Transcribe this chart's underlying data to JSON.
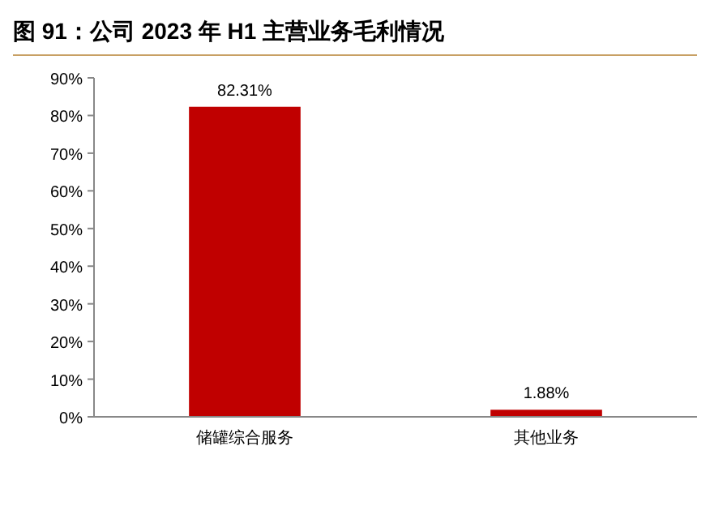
{
  "chart_data": {
    "type": "bar",
    "title": "图 91：公司 2023 年 H1 主营业务毛利情况",
    "categories": [
      "储罐综合服务",
      "其他业务"
    ],
    "values": [
      82.31,
      1.88
    ],
    "value_labels": [
      "82.31%",
      "1.88%"
    ],
    "color": "#c00000",
    "ylim": [
      0,
      90
    ],
    "yticks": [
      {
        "value": 0,
        "label": "0%"
      },
      {
        "value": 10,
        "label": "10%"
      },
      {
        "value": 20,
        "label": "20%"
      },
      {
        "value": 30,
        "label": "30%"
      },
      {
        "value": 40,
        "label": "40%"
      },
      {
        "value": 50,
        "label": "50%"
      },
      {
        "value": 60,
        "label": "60%"
      },
      {
        "value": 70,
        "label": "70%"
      },
      {
        "value": 80,
        "label": "80%"
      },
      {
        "value": 90,
        "label": "90%"
      }
    ],
    "grid": false
  }
}
